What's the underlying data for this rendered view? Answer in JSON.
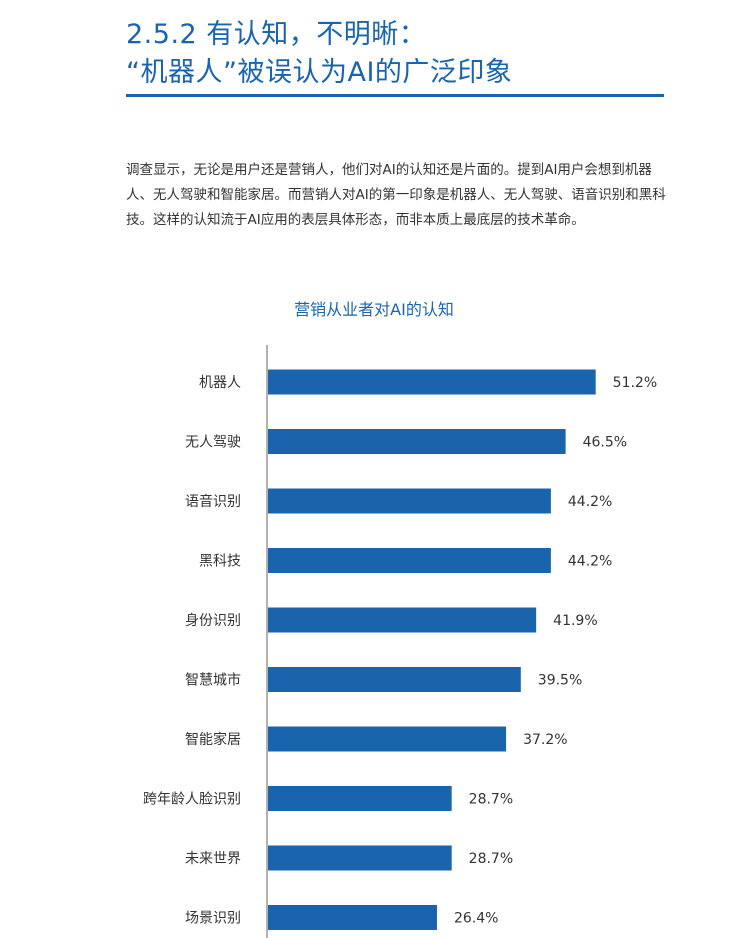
{
  "heading": {
    "line1": "2.5.2 有认知，不明晰：",
    "line2": "“机器人”被误认为AI的广泛印象"
  },
  "intro": "调查显示，无论是用户还是营销人，他们对AI的认知还是片面的。提到AI用户会想到机器人、无人驾驶和智能家居。而营销人对AI的第一印象是机器人、无人驾驶、语音识别和黑科技。这样的认知流于AI应用的表层具体形态，而非本质上最底层的技术革命。",
  "colors": {
    "accent": "#1a64ad",
    "bar": "#1a64ad",
    "axis": "#666666"
  },
  "chart_data": {
    "type": "bar",
    "orientation": "horizontal",
    "title": "营销从业者对AI的认知",
    "categories": [
      "机器人",
      "无人驾驶",
      "语音识别",
      "黑科技",
      "身份识别",
      "智慧城市",
      "智能家居",
      "跨年龄人脸识别",
      "未来世界",
      "场景识别"
    ],
    "values": [
      51.2,
      46.5,
      44.2,
      44.2,
      41.9,
      39.5,
      37.2,
      28.7,
      28.7,
      26.4
    ],
    "value_labels": [
      "51.2%",
      "46.5%",
      "44.2%",
      "44.2%",
      "41.9%",
      "39.5%",
      "37.2%",
      "28.7%",
      "28.7%",
      "26.4%"
    ],
    "unit": "%",
    "xlim": [
      0,
      100
    ],
    "grid": false,
    "legend": "none"
  }
}
